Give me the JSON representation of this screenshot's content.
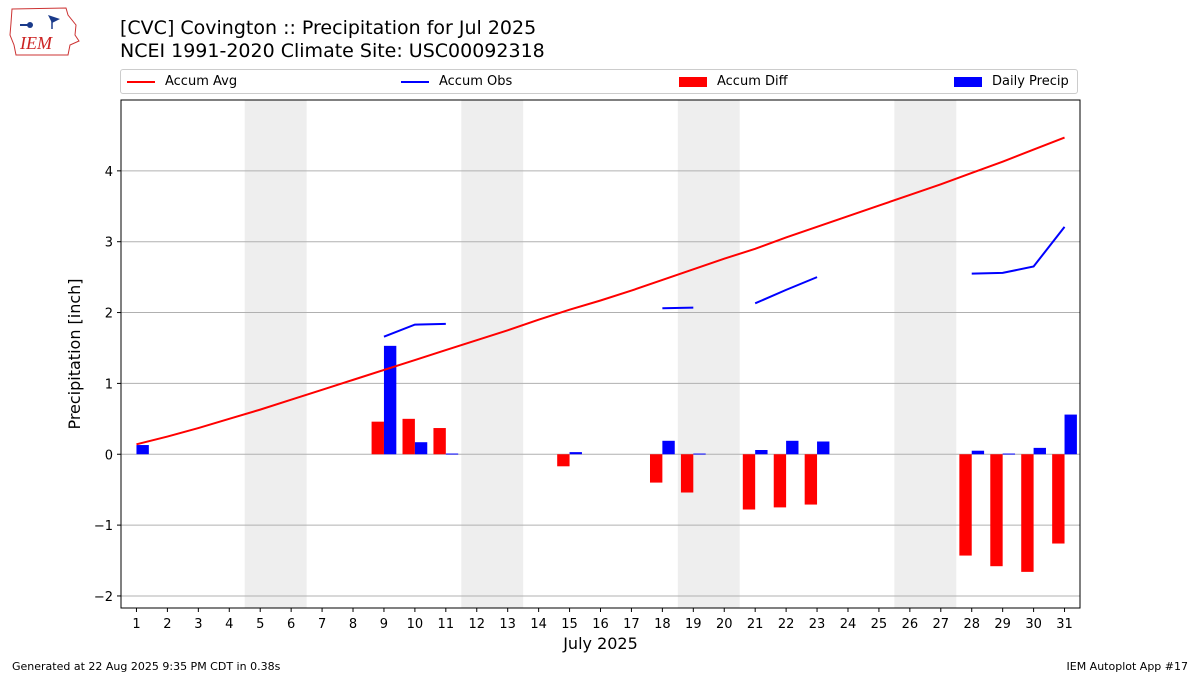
{
  "logo": {
    "text": "IEM"
  },
  "title": {
    "line1": "[CVC] Covington :: Precipitation for Jul 2025",
    "line2": "NCEI 1991-2020 Climate Site: USC00092318"
  },
  "legend": {
    "accum_avg": "Accum Avg",
    "accum_obs": "Accum Obs",
    "accum_diff": "Accum Diff",
    "daily_precip": "Daily Precip"
  },
  "colors": {
    "avg": "#ff0000",
    "obs": "#0000ff",
    "diff": "#ff0000",
    "daily": "#0000ff",
    "weekend": "#eeeeee",
    "grid": "#b0b0b0"
  },
  "footer": {
    "left": "Generated at 22 Aug 2025 9:35 PM CDT in 0.38s",
    "right": "IEM Autoplot App #17"
  },
  "chart_data": {
    "type": "bar",
    "title": "[CVC] Covington :: Precipitation for Jul 2025",
    "xlabel": "July 2025",
    "ylabel": "Precipitation [inch]",
    "xlim": [
      0.5,
      31.5
    ],
    "ylim": [
      -2.17,
      5.0
    ],
    "yticks": [
      -2,
      -1,
      0,
      1,
      2,
      3,
      4
    ],
    "ytick_labels": [
      "−2",
      "−1",
      "0",
      "1",
      "2",
      "3",
      "4"
    ],
    "days": [
      1,
      2,
      3,
      4,
      5,
      6,
      7,
      8,
      9,
      10,
      11,
      12,
      13,
      14,
      15,
      16,
      17,
      18,
      19,
      20,
      21,
      22,
      23,
      24,
      25,
      26,
      27,
      28,
      29,
      30,
      31
    ],
    "weekend_spans": [
      [
        4.5,
        6.5
      ],
      [
        11.5,
        13.5
      ],
      [
        18.5,
        20.5
      ],
      [
        25.5,
        27.5
      ]
    ],
    "grid": "horizontal",
    "legend_position": "top",
    "series": [
      {
        "name": "Accum Avg",
        "kind": "line",
        "values": [
          0.14,
          0.25,
          0.37,
          0.5,
          0.63,
          0.77,
          0.91,
          1.05,
          1.19,
          1.33,
          1.47,
          1.61,
          1.75,
          1.9,
          2.04,
          2.17,
          2.31,
          2.46,
          2.61,
          2.76,
          2.9,
          3.06,
          3.21,
          3.36,
          3.51,
          3.66,
          3.81,
          3.97,
          4.13,
          4.3,
          4.47
        ]
      },
      {
        "name": "Accum Obs",
        "kind": "line",
        "values": [
          null,
          null,
          null,
          null,
          null,
          null,
          null,
          null,
          1.66,
          1.83,
          1.84,
          null,
          null,
          null,
          null,
          null,
          null,
          2.06,
          2.07,
          null,
          2.13,
          2.32,
          2.5,
          null,
          null,
          null,
          null,
          2.55,
          2.56,
          2.65,
          3.21
        ]
      },
      {
        "name": "Accum Diff",
        "kind": "bar",
        "values": [
          0,
          0,
          0,
          0,
          0,
          0,
          0,
          0,
          0.46,
          0.5,
          0.37,
          0,
          0,
          0,
          -0.17,
          0,
          0,
          -0.4,
          -0.54,
          0,
          -0.78,
          -0.75,
          -0.71,
          0,
          0,
          0,
          0,
          -1.43,
          -1.58,
          -1.66,
          -1.26
        ]
      },
      {
        "name": "Daily Precip",
        "kind": "bar",
        "values": [
          0.13,
          0,
          0,
          0,
          0,
          0,
          0,
          0,
          1.53,
          0.17,
          0.01,
          0,
          0,
          0,
          0.03,
          0,
          0,
          0.19,
          0.01,
          0,
          0.06,
          0.19,
          0.18,
          0,
          0,
          0,
          0,
          0.05,
          0.01,
          0.09,
          0.56
        ]
      }
    ]
  }
}
